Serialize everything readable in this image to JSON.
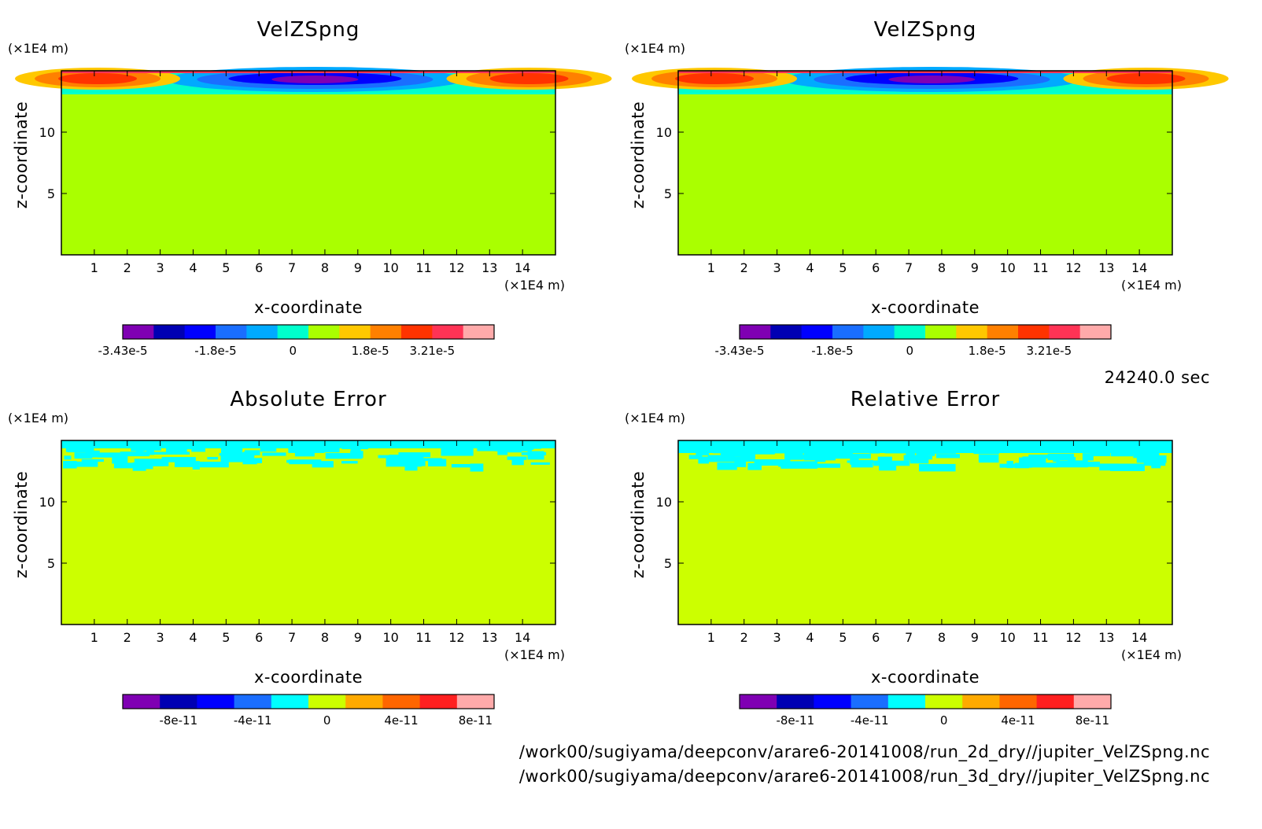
{
  "time_label": "24240.0 sec",
  "footer_paths": [
    "/work00/sugiyama/deepconv/arare6-20141008/run_2d_dry//jupiter_VelZSpng.nc",
    "/work00/sugiyama/deepconv/arare6-20141008/run_3d_dry//jupiter_VelZSpng.nc"
  ],
  "chart_data": [
    {
      "type": "heatmap",
      "title": "VelZSpng",
      "xlabel": "x-coordinate",
      "ylabel": "z-coordinate",
      "x_unit": "(×1E4 m)",
      "y_unit": "(×1E4 m)",
      "xlim": [
        0,
        15
      ],
      "ylim": [
        0,
        15
      ],
      "xticks": [
        1,
        2,
        3,
        4,
        5,
        6,
        7,
        8,
        9,
        10,
        11,
        12,
        13,
        14
      ],
      "yticks": [
        5,
        10
      ],
      "background_color": "#aaff00",
      "colorbar": {
        "colors": [
          "#7f00b3",
          "#0000b3",
          "#0000ff",
          "#1a6eff",
          "#00aaff",
          "#00ffcc",
          "#aaff00",
          "#ffc800",
          "#ff8000",
          "#ff3300",
          "#ff3355",
          "#ffaaaa"
        ],
        "labels": [
          "-3.43e-5",
          "-1.8e-5",
          "0",
          "1.8e-5",
          "3.21e-5"
        ],
        "label_positions": [
          0,
          3,
          5.5,
          8,
          10
        ]
      }
    },
    {
      "type": "heatmap",
      "title": "VelZSpng",
      "xlabel": "x-coordinate",
      "ylabel": "z-coordinate",
      "x_unit": "(×1E4 m)",
      "y_unit": "(×1E4 m)",
      "xlim": [
        0,
        15
      ],
      "ylim": [
        0,
        15
      ],
      "xticks": [
        1,
        2,
        3,
        4,
        5,
        6,
        7,
        8,
        9,
        10,
        11,
        12,
        13,
        14
      ],
      "yticks": [
        5,
        10
      ],
      "background_color": "#aaff00",
      "colorbar": {
        "colors": [
          "#7f00b3",
          "#0000b3",
          "#0000ff",
          "#1a6eff",
          "#00aaff",
          "#00ffcc",
          "#aaff00",
          "#ffc800",
          "#ff8000",
          "#ff3300",
          "#ff3355",
          "#ffaaaa"
        ],
        "labels": [
          "-3.43e-5",
          "-1.8e-5",
          "0",
          "1.8e-5",
          "3.21e-5"
        ],
        "label_positions": [
          0,
          3,
          5.5,
          8,
          10
        ]
      }
    },
    {
      "type": "heatmap",
      "title": "Absolute Error",
      "xlabel": "x-coordinate",
      "ylabel": "z-coordinate",
      "x_unit": "(×1E4 m)",
      "y_unit": "(×1E4 m)",
      "xlim": [
        0,
        15
      ],
      "ylim": [
        0,
        15
      ],
      "xticks": [
        1,
        2,
        3,
        4,
        5,
        6,
        7,
        8,
        9,
        10,
        11,
        12,
        13,
        14
      ],
      "yticks": [
        5,
        10
      ],
      "background_color": "#ccff00",
      "colorbar": {
        "colors": [
          "#7f00b3",
          "#0000b3",
          "#0000ff",
          "#1a6eff",
          "#00ffff",
          "#ccff00",
          "#ffaa00",
          "#ff6600",
          "#ff2020",
          "#ffaaaa"
        ],
        "labels": [
          "-8e-11",
          "-4e-11",
          "0",
          "4e-11",
          "8e-11"
        ],
        "label_positions": [
          1,
          3,
          5,
          7,
          9
        ]
      }
    },
    {
      "type": "heatmap",
      "title": "Relative Error",
      "xlabel": "x-coordinate",
      "ylabel": "z-coordinate",
      "x_unit": "(×1E4 m)",
      "y_unit": "(×1E4 m)",
      "xlim": [
        0,
        15
      ],
      "ylim": [
        0,
        15
      ],
      "xticks": [
        1,
        2,
        3,
        4,
        5,
        6,
        7,
        8,
        9,
        10,
        11,
        12,
        13,
        14
      ],
      "yticks": [
        5,
        10
      ],
      "background_color": "#ccff00",
      "colorbar": {
        "colors": [
          "#7f00b3",
          "#0000b3",
          "#0000ff",
          "#1a6eff",
          "#00ffff",
          "#ccff00",
          "#ffaa00",
          "#ff6600",
          "#ff2020",
          "#ffaaaa"
        ],
        "labels": [
          "-8e-11",
          "-4e-11",
          "0",
          "4e-11",
          "8e-11"
        ],
        "label_positions": [
          1,
          3,
          5,
          7,
          9
        ]
      }
    }
  ]
}
